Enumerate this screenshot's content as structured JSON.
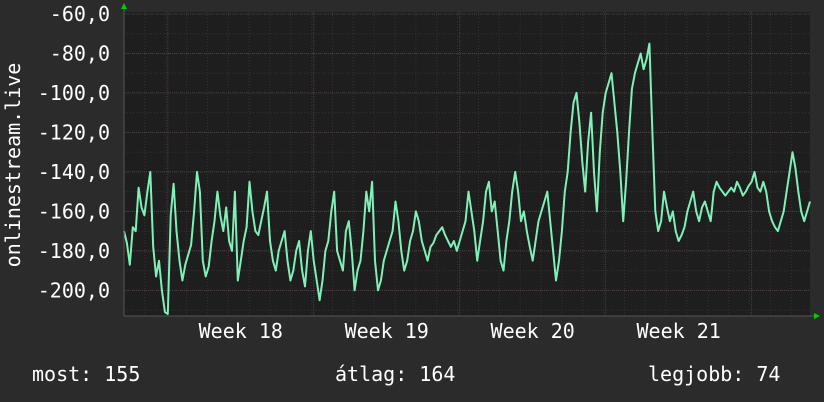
{
  "colors": {
    "background": "#2b2b2b",
    "plot_background": "#1e1e1e",
    "grid_major": "#4a4040",
    "grid_minor": "#3a3030",
    "line": "#7ff0b8",
    "axis_arrow": "#00cc00",
    "text": "#ffffff"
  },
  "stats": {
    "current": "most: 155",
    "average": "átlag: 164",
    "best": "legjobb: 74"
  },
  "chart_data": {
    "type": "line",
    "title": "",
    "ylabel": "onlinestream.live",
    "xlabel": "",
    "x_axis": "weeks",
    "xlim": [
      17.0,
      21.7
    ],
    "ylim": [
      -213,
      -59
    ],
    "y_ticks": [
      "-60,0",
      "-80,0",
      "-100,0",
      "-120,0",
      "-140,0",
      "-160,0",
      "-180,0",
      "-200,0"
    ],
    "y_tick_values": [
      -60,
      -80,
      -100,
      -120,
      -140,
      -160,
      -180,
      -200
    ],
    "x_ticks": [
      "Week 18",
      "Week 19",
      "Week 20",
      "Week 21"
    ],
    "x_tick_values": [
      17.8,
      18.8,
      19.8,
      20.8
    ],
    "grid": true,
    "series": [
      {
        "name": "",
        "x": [
          17.0,
          17.02,
          17.04,
          17.06,
          17.08,
          17.1,
          17.12,
          17.14,
          17.16,
          17.18,
          17.2,
          17.22,
          17.24,
          17.26,
          17.28,
          17.3,
          17.32,
          17.34,
          17.36,
          17.38,
          17.4,
          17.42,
          17.44,
          17.46,
          17.48,
          17.5,
          17.52,
          17.54,
          17.56,
          17.58,
          17.6,
          17.62,
          17.64,
          17.66,
          17.68,
          17.7,
          17.72,
          17.74,
          17.76,
          17.78,
          17.8,
          17.82,
          17.84,
          17.86,
          17.88,
          17.9,
          17.92,
          17.94,
          17.96,
          17.98,
          18.0,
          18.02,
          18.04,
          18.06,
          18.08,
          18.1,
          18.12,
          18.14,
          18.16,
          18.18,
          18.2,
          18.22,
          18.24,
          18.26,
          18.28,
          18.3,
          18.32,
          18.34,
          18.36,
          18.38,
          18.4,
          18.42,
          18.44,
          18.46,
          18.48,
          18.5,
          18.52,
          18.54,
          18.56,
          18.58,
          18.6,
          18.62,
          18.64,
          18.66,
          18.68,
          18.7,
          18.72,
          18.74,
          18.76,
          18.78,
          18.8,
          18.82,
          18.84,
          18.86,
          18.88,
          18.9,
          18.92,
          18.94,
          18.96,
          18.98,
          19.0,
          19.02,
          19.04,
          19.06,
          19.08,
          19.1,
          19.12,
          19.14,
          19.16,
          19.18,
          19.2,
          19.22,
          19.24,
          19.26,
          19.28,
          19.3,
          19.32,
          19.34,
          19.36,
          19.38,
          19.4,
          19.42,
          19.44,
          19.46,
          19.48,
          19.5,
          19.52,
          19.54,
          19.56,
          19.58,
          19.6,
          19.62,
          19.64,
          19.66,
          19.68,
          19.7,
          19.72,
          19.74,
          19.76,
          19.78,
          19.8,
          19.82,
          19.84,
          19.86,
          19.88,
          19.9,
          19.92,
          19.94,
          19.96,
          19.98,
          20.0,
          20.02,
          20.04,
          20.06,
          20.08,
          20.1,
          20.12,
          20.14,
          20.16,
          20.18,
          20.2,
          20.22,
          20.24,
          20.26,
          20.28,
          20.3,
          20.32,
          20.34,
          20.36,
          20.38,
          20.4,
          20.42,
          20.44,
          20.46,
          20.48,
          20.5,
          20.52,
          20.54,
          20.56,
          20.58,
          20.6,
          20.62,
          20.64,
          20.66,
          20.68,
          20.7,
          20.72,
          20.74,
          20.76,
          20.78,
          20.8,
          20.82,
          20.84,
          20.86,
          20.88,
          20.9,
          20.92,
          20.94,
          20.96,
          20.98,
          21.0,
          21.02,
          21.04,
          21.06,
          21.08,
          21.1,
          21.12,
          21.14,
          21.16,
          21.18,
          21.2,
          21.22,
          21.24,
          21.26,
          21.28,
          21.3,
          21.32,
          21.34,
          21.36,
          21.38,
          21.4,
          21.42,
          21.44,
          21.46,
          21.48,
          21.5,
          21.52,
          21.54,
          21.56,
          21.58,
          21.6,
          21.62,
          21.64,
          21.66,
          21.68,
          21.7
        ],
        "values": [
          -170,
          -176,
          -187,
          -168,
          -170,
          -148,
          -158,
          -162,
          -150,
          -140,
          -178,
          -193,
          -185,
          -200,
          -211,
          -212,
          -162,
          -146,
          -170,
          -185,
          -195,
          -187,
          -182,
          -177,
          -160,
          -140,
          -150,
          -185,
          -193,
          -188,
          -175,
          -165,
          -150,
          -162,
          -170,
          -158,
          -175,
          -180,
          -150,
          -195,
          -185,
          -175,
          -168,
          -145,
          -160,
          -170,
          -172,
          -165,
          -158,
          -150,
          -175,
          -185,
          -190,
          -180,
          -175,
          -170,
          -185,
          -195,
          -190,
          -180,
          -175,
          -190,
          -198,
          -180,
          -170,
          -185,
          -195,
          -205,
          -195,
          -180,
          -175,
          -160,
          -150,
          -180,
          -185,
          -190,
          -170,
          -165,
          -180,
          -200,
          -190,
          -185,
          -170,
          -150,
          -160,
          -145,
          -185,
          -200,
          -195,
          -185,
          -180,
          -175,
          -170,
          -155,
          -165,
          -180,
          -190,
          -185,
          -175,
          -170,
          -160,
          -165,
          -175,
          -180,
          -185,
          -178,
          -176,
          -172,
          -170,
          -168,
          -172,
          -175,
          -178,
          -175,
          -180,
          -175,
          -170,
          -165,
          -150,
          -160,
          -170,
          -185,
          -175,
          -165,
          -150,
          -145,
          -160,
          -155,
          -170,
          -185,
          -190,
          -175,
          -165,
          -150,
          -140,
          -150,
          -165,
          -160,
          -170,
          -178,
          -185,
          -175,
          -165,
          -160,
          -155,
          -150,
          -165,
          -180,
          -195,
          -185,
          -170,
          -150,
          -140,
          -120,
          -105,
          -100,
          -115,
          -135,
          -150,
          -125,
          -110,
          -140,
          -160,
          -130,
          -110,
          -100,
          -95,
          -90,
          -105,
          -120,
          -140,
          -165,
          -145,
          -120,
          -98,
          -90,
          -85,
          -80,
          -88,
          -83,
          -75,
          -120,
          -160,
          -170,
          -165,
          -150,
          -158,
          -165,
          -160,
          -170,
          -175,
          -172,
          -168,
          -160,
          -155,
          -150,
          -160,
          -165,
          -158,
          -155,
          -160,
          -165,
          -150,
          -145,
          -148,
          -150,
          -152,
          -150,
          -148,
          -150,
          -145,
          -148,
          -152,
          -150,
          -147,
          -145,
          -140,
          -148,
          -150,
          -145,
          -150,
          -160,
          -165,
          -168,
          -170,
          -165,
          -160,
          -150,
          -140,
          -130,
          -138,
          -150,
          -160,
          -165,
          -160,
          -155
        ]
      }
    ]
  }
}
